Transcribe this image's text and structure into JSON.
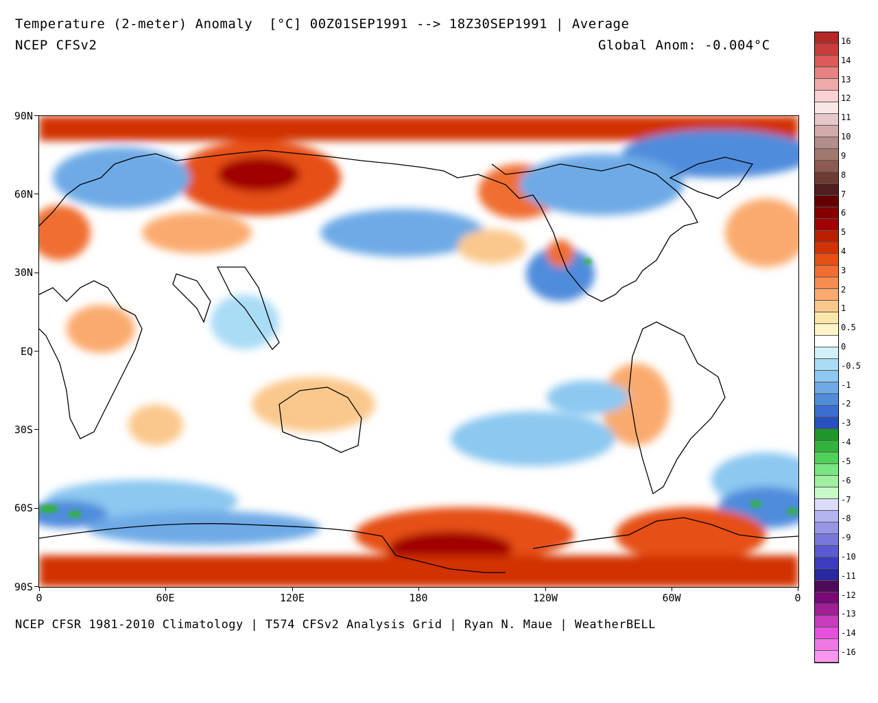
{
  "header": {
    "title": "Temperature (2-meter) Anomaly  [°C] 00Z01SEP1991 --> 18Z30SEP1991 | Average",
    "model": "NCEP CFSv2",
    "global_anom": "Global Anom: -0.004°C"
  },
  "footer": "NCEP CFSR 1981-2010 Climatology | T574 CFSv2 Analysis Grid | Ryan N. Maue | WeatherBELL",
  "axes": {
    "lat_labels": [
      "90N",
      "60N",
      "30N",
      "EQ",
      "30S",
      "60S",
      "90S"
    ],
    "lon_labels": [
      "0",
      "60E",
      "120E",
      "180",
      "120W",
      "60W",
      "0"
    ]
  },
  "colorbar": {
    "labels": [
      "16",
      "14",
      "13",
      "12",
      "11",
      "10",
      "9",
      "8",
      "7",
      "6",
      "5",
      "4",
      "3",
      "2",
      "1",
      "0.5",
      "0",
      "-0.5",
      "-1",
      "-2",
      "-3",
      "-4",
      "-5",
      "-6",
      "-7",
      "-8",
      "-9",
      "-10",
      "-11",
      "-12",
      "-13",
      "-14",
      "-16"
    ],
    "colors": [
      "#b42828",
      "#c83c3c",
      "#dc5a5a",
      "#e68282",
      "#f0aaaa",
      "#fad2d2",
      "#fae6e6",
      "#e6c8c8",
      "#d2aaaa",
      "#b48c8c",
      "#a0786e",
      "#8c5a50",
      "#6e3c32",
      "#501e1e",
      "#640000",
      "#820000",
      "#a00000",
      "#be1e00",
      "#d23200",
      "#e65014",
      "#f06e32",
      "#f58c50",
      "#faaa6e",
      "#fac88c",
      "#fae6aa",
      "#fff5c8",
      "#ffffff",
      "#d2f0fa",
      "#aadcf5",
      "#8cc8f0",
      "#6eaae6",
      "#508cdc",
      "#3c6ed2",
      "#2850be",
      "#1e9628",
      "#32b43c",
      "#50d25a",
      "#78e682",
      "#a0f0a0",
      "#c8fac8",
      "#dcdcfa",
      "#b4b4f0",
      "#9696e6",
      "#7878dc",
      "#5a5ad2",
      "#3c3cbe",
      "#2828a0",
      "#500a5a",
      "#780a78",
      "#a01e96",
      "#c83cbe",
      "#e650dc",
      "#f078e6",
      "#fa96f0"
    ],
    "title": ""
  },
  "map_palette": {
    "warm_strong": "#c81e00",
    "warm": "#f06e32",
    "warm_light": "#fac88c",
    "neutral": "#ffffff",
    "cool_light": "#aadcf5",
    "cool": "#508cdc",
    "cool_strong": "#2850be",
    "green": "#32b43c",
    "coast": "#000000"
  }
}
